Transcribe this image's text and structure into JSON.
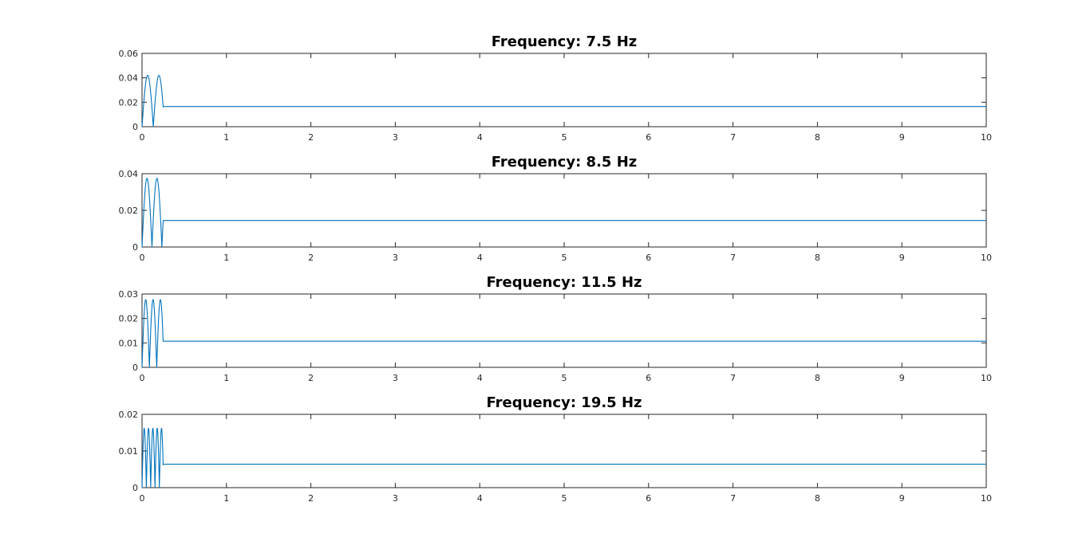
{
  "figure": {
    "background": "#ffffff",
    "line_color": "#0072BD",
    "axis_color": "#262626"
  },
  "chart_data": [
    {
      "type": "line",
      "title": "Frequency: 7.5 Hz",
      "frequency_hz": 7.5,
      "xlim": [
        0,
        10
      ],
      "ylim": [
        0,
        0.06
      ],
      "xticks": [
        "0",
        "1",
        "2",
        "3",
        "4",
        "5",
        "6",
        "7",
        "8",
        "9",
        "10"
      ],
      "yticks": [
        "0",
        "0.02",
        "0.04",
        "0.06"
      ],
      "grid": false,
      "series": [
        {
          "burst_end": 0.25,
          "peak": 0.042,
          "steady": 0.0165
        }
      ]
    },
    {
      "type": "line",
      "title": "Frequency: 8.5 Hz",
      "frequency_hz": 8.5,
      "xlim": [
        0,
        10
      ],
      "ylim": [
        0,
        0.04
      ],
      "xticks": [
        "0",
        "1",
        "2",
        "3",
        "4",
        "5",
        "6",
        "7",
        "8",
        "9",
        "10"
      ],
      "yticks": [
        "0",
        "0.02",
        "0.04"
      ],
      "grid": false,
      "series": [
        {
          "burst_end": 0.25,
          "peak": 0.0375,
          "steady": 0.0145
        }
      ]
    },
    {
      "type": "line",
      "title": "Frequency: 11.5 Hz",
      "frequency_hz": 11.5,
      "xlim": [
        0,
        10
      ],
      "ylim": [
        0,
        0.03
      ],
      "xticks": [
        "0",
        "1",
        "2",
        "3",
        "4",
        "5",
        "6",
        "7",
        "8",
        "9",
        "10"
      ],
      "yticks": [
        "0",
        "0.01",
        "0.02",
        "0.03"
      ],
      "grid": false,
      "series": [
        {
          "burst_end": 0.25,
          "peak": 0.0277,
          "steady": 0.0107
        }
      ]
    },
    {
      "type": "line",
      "title": "Frequency: 19.5 Hz",
      "frequency_hz": 19.5,
      "xlim": [
        0,
        10
      ],
      "ylim": [
        0,
        0.02
      ],
      "xticks": [
        "0",
        "1",
        "2",
        "3",
        "4",
        "5",
        "6",
        "7",
        "8",
        "9",
        "10"
      ],
      "yticks": [
        "0",
        "0.01",
        "0.02"
      ],
      "grid": false,
      "series": [
        {
          "burst_end": 0.25,
          "peak": 0.0162,
          "steady": 0.0064
        }
      ]
    }
  ]
}
